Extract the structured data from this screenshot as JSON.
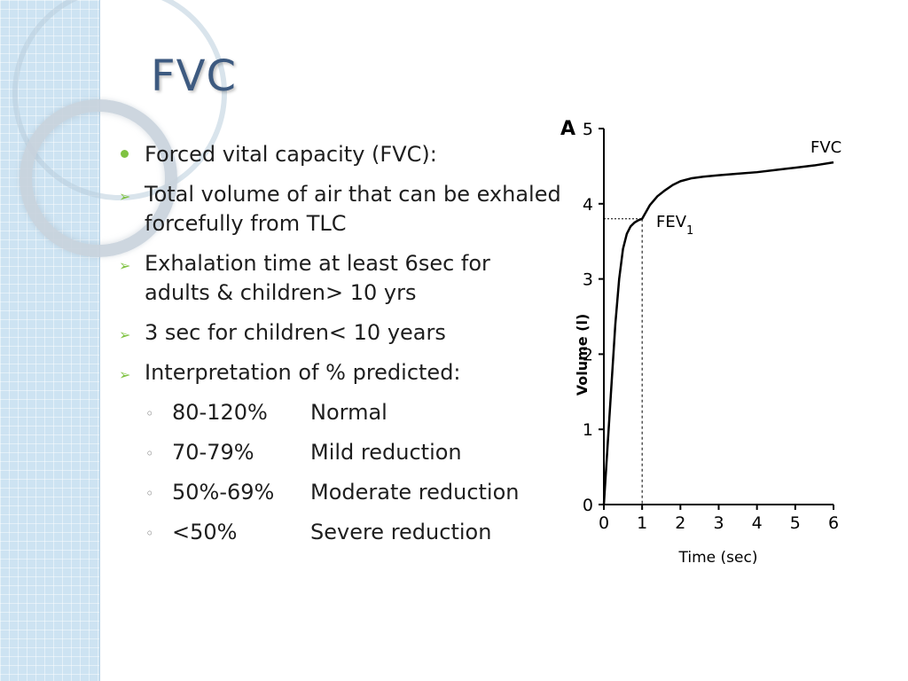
{
  "title": "FVC",
  "bullets": [
    {
      "style": "dot",
      "text": "Forced vital capacity (FVC):"
    },
    {
      "style": "arrow",
      "text": "Total volume of air that can be exhaled forcefully from TLC"
    },
    {
      "style": "arrow",
      "text": "Exhalation time at least 6sec for adults & children> 10 yrs"
    },
    {
      "style": "arrow",
      "text": "3 sec for children< 10 years"
    },
    {
      "style": "arrow",
      "text": "Interpretation of % predicted:"
    }
  ],
  "interpretation": [
    {
      "range": "80-120%",
      "label": "Normal"
    },
    {
      "range": "70-79%",
      "label": "Mild reduction"
    },
    {
      "range": "50%-69%",
      "label": "Moderate reduction"
    },
    {
      "range": "<50%",
      "label": "Severe reduction"
    }
  ],
  "colors": {
    "title": "#3d5a80",
    "bullet": "#7fc241",
    "band": "#cde3f2"
  },
  "chart_data": {
    "type": "line",
    "panel_label": "A",
    "xlabel": "Time (sec)",
    "ylabel": "Volume (l)",
    "xlim": [
      0,
      6
    ],
    "ylim": [
      0,
      5
    ],
    "x_ticks": [
      "0",
      "1",
      "2",
      "3",
      "4",
      "5",
      "6"
    ],
    "y_ticks": [
      "0",
      "1",
      "2",
      "3",
      "4",
      "5"
    ],
    "series": [
      {
        "name": "FVC",
        "x": [
          0,
          0.1,
          0.2,
          0.3,
          0.4,
          0.5,
          0.6,
          0.7,
          0.8,
          0.9,
          1.0,
          1.2,
          1.4,
          1.6,
          1.8,
          2.0,
          2.3,
          2.6,
          3.0,
          3.5,
          4.0,
          4.5,
          5.0,
          5.5,
          6.0
        ],
        "y": [
          0,
          0.8,
          1.6,
          2.4,
          3.0,
          3.4,
          3.6,
          3.7,
          3.75,
          3.78,
          3.8,
          3.98,
          4.1,
          4.18,
          4.25,
          4.3,
          4.34,
          4.36,
          4.38,
          4.4,
          4.42,
          4.45,
          4.48,
          4.51,
          4.55
        ]
      }
    ],
    "annotations": [
      {
        "text": "FVC",
        "subscript": ""
      },
      {
        "text": "FEV",
        "subscript": "1",
        "x": 1.0,
        "y": 3.8
      }
    ],
    "grid": false
  }
}
